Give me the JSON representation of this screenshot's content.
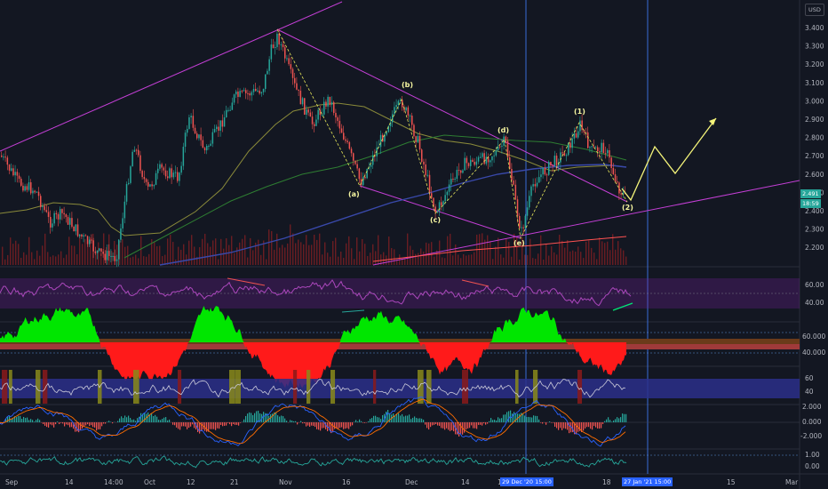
{
  "currency_button": "USD",
  "price_axis": {
    "ticks": [
      "3.400",
      "3.300",
      "3.200",
      "3.100",
      "3.000",
      "2.900",
      "2.800",
      "2.700",
      "2.600",
      "2.500",
      "2.400",
      "2.300",
      "2.200"
    ],
    "last_price": "2.491",
    "countdown": "18:59"
  },
  "time_axis": {
    "ticks": [
      {
        "t": "Sep",
        "x": 6
      },
      {
        "t": "14",
        "x": 73
      },
      {
        "t": "14:00",
        "x": 117
      },
      {
        "t": "Oct",
        "x": 162
      },
      {
        "t": "12",
        "x": 210
      },
      {
        "t": "21",
        "x": 259
      },
      {
        "t": "Nov",
        "x": 314
      },
      {
        "t": "16",
        "x": 385
      },
      {
        "t": "Dec",
        "x": 456
      },
      {
        "t": "14",
        "x": 519
      },
      {
        "t": "11",
        "x": 560
      },
      {
        "t": "18",
        "x": 678
      },
      {
        "t": "15",
        "x": 818
      },
      {
        "t": "Mar",
        "x": 884
      }
    ],
    "cursor_labels": [
      "29 Dec '20   15:00",
      "27 Jan '21   15:00"
    ]
  },
  "wave_labels": [
    "(a)",
    "(b)",
    "(c)",
    "(d)",
    "(e)",
    "(1)",
    "(2)"
  ],
  "indicator_axes": {
    "rsi": [
      "60.00",
      "40.00"
    ],
    "osc": [
      "60.000",
      "40.000"
    ],
    "band": [
      "60",
      "40"
    ],
    "macd": [
      "2.000",
      "0.000",
      "-2.000"
    ],
    "vol": [
      "1.00",
      "0.00"
    ]
  },
  "colors": {
    "background": "#131722",
    "channel": "#c43fd6",
    "rsi": "#ab47bc",
    "up": "#26a69a",
    "down": "#ef5350",
    "green_fill": "#00e600",
    "red_fill": "#ff1a1a",
    "projection": "#f5f57a",
    "cursor": "#3a6bd6"
  }
}
